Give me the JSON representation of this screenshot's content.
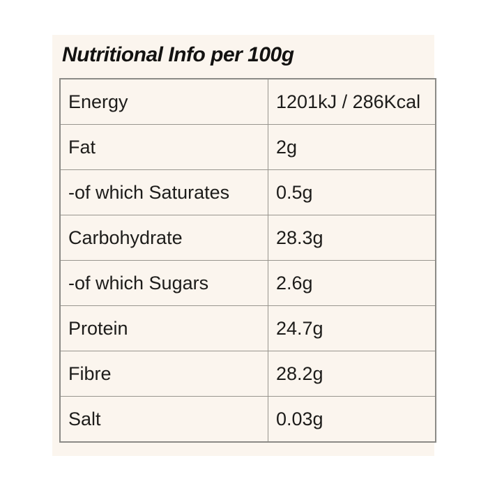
{
  "title": "Nutritional Info per 100g",
  "table": {
    "rows": [
      {
        "label": "Energy",
        "value": "1201kJ / 286Kcal"
      },
      {
        "label": "Fat",
        "value": "2g"
      },
      {
        "label": "-of which Saturates",
        "value": "0.5g"
      },
      {
        "label": "Carbohydrate",
        "value": "28.3g"
      },
      {
        "label": "-of which Sugars",
        "value": "2.6g"
      },
      {
        "label": "Protein",
        "value": "24.7g"
      },
      {
        "label": "Fibre",
        "value": "28.2g"
      },
      {
        "label": "Salt",
        "value": "0.03g"
      }
    ]
  },
  "colors": {
    "card_background": "#fbf5ee",
    "table_outer_border": "#8b8a86",
    "table_inner_border": "#98958e",
    "text": "#1d1c1a"
  }
}
